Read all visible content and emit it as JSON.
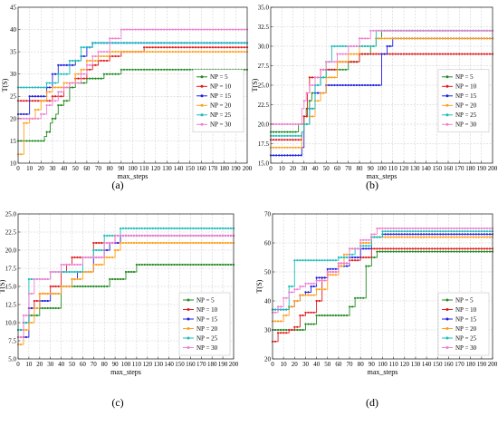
{
  "chart_data": [
    {
      "type": "line",
      "panel_label": "(a)",
      "xlabel": "max_steps",
      "ylabel": "T(S)",
      "xlim": [
        0,
        200
      ],
      "ylim": [
        10,
        45
      ],
      "xticks": [
        0,
        10,
        20,
        30,
        40,
        50,
        60,
        70,
        80,
        90,
        100,
        110,
        120,
        130,
        140,
        150,
        160,
        170,
        180,
        190,
        200
      ],
      "yticks": [
        10,
        15,
        20,
        25,
        30,
        35,
        40,
        45
      ],
      "grid": true,
      "legend_position": "right",
      "series": [
        {
          "name": "NP = 5",
          "x": [
            0,
            20,
            23,
            25,
            28,
            30,
            33,
            35,
            40,
            45,
            50,
            55,
            60,
            70,
            75,
            80,
            90,
            110,
            200
          ],
          "y": [
            15,
            15,
            16,
            17,
            19,
            20,
            21,
            23,
            24,
            27,
            28,
            28,
            29,
            29,
            30,
            30,
            31,
            31,
            31
          ]
        },
        {
          "name": "NP = 10",
          "x": [
            0,
            20,
            30,
            40,
            45,
            50,
            60,
            65,
            70,
            75,
            80,
            90,
            110,
            200
          ],
          "y": [
            24,
            24,
            25,
            27,
            28,
            29,
            31,
            32,
            33,
            33,
            34,
            35,
            36,
            36
          ]
        },
        {
          "name": "NP = 15",
          "x": [
            0,
            10,
            20,
            25,
            30,
            35,
            45,
            50,
            55,
            60,
            65,
            70,
            110,
            200
          ],
          "y": [
            21,
            25,
            25,
            27,
            30,
            32,
            32,
            33,
            34,
            36,
            37,
            37,
            37,
            37
          ]
        },
        {
          "name": "NP = 20",
          "x": [
            0,
            5,
            10,
            15,
            20,
            25,
            30,
            40,
            50,
            55,
            60,
            70,
            80,
            110,
            200
          ],
          "y": [
            12,
            19,
            20,
            22,
            24,
            26,
            27,
            28,
            30,
            31,
            33,
            34,
            35,
            35,
            35
          ]
        },
        {
          "name": "NP = 25",
          "x": [
            0,
            20,
            25,
            35,
            40,
            45,
            50,
            55,
            60,
            65,
            110,
            200
          ],
          "y": [
            27,
            27,
            28,
            30,
            30,
            33,
            33,
            36,
            36,
            37,
            37,
            37
          ]
        },
        {
          "name": "NP = 30",
          "x": [
            0,
            20,
            25,
            30,
            35,
            40,
            45,
            55,
            60,
            65,
            70,
            80,
            90,
            100,
            200
          ],
          "y": [
            20,
            21,
            23,
            24,
            26,
            27,
            28,
            30,
            32,
            34,
            35,
            38,
            40,
            40,
            40
          ]
        }
      ]
    },
    {
      "type": "line",
      "panel_label": "(b)",
      "xlabel": "max_steps",
      "ylabel": "T(S)",
      "xlim": [
        0,
        200
      ],
      "ylim": [
        15,
        35
      ],
      "xticks": [
        0,
        10,
        20,
        30,
        40,
        50,
        60,
        70,
        80,
        90,
        100,
        110,
        120,
        130,
        140,
        150,
        160,
        170,
        180,
        190,
        200
      ],
      "yticks": [
        15.0,
        17.5,
        20.0,
        22.5,
        25.0,
        27.5,
        30.0,
        32.5,
        35.0
      ],
      "grid": true,
      "legend_position": "right",
      "series": [
        {
          "name": "NP = 5",
          "x": [
            0,
            20,
            25,
            28,
            30,
            32,
            35,
            37,
            40,
            45,
            50,
            60,
            70,
            80,
            90,
            95,
            100,
            200
          ],
          "y": [
            19,
            19,
            20,
            20,
            21,
            22,
            23,
            24,
            25,
            26,
            27,
            27,
            28,
            29,
            30,
            31,
            32,
            32
          ]
        },
        {
          "name": "NP = 10",
          "x": [
            0,
            25,
            28,
            30,
            33,
            35,
            40,
            45,
            50,
            60,
            70,
            80,
            90,
            100,
            200
          ],
          "y": [
            18,
            18,
            19,
            21,
            24,
            26,
            26,
            27,
            27,
            28,
            28,
            29,
            29,
            29,
            29
          ]
        },
        {
          "name": "NP = 15",
          "x": [
            0,
            25,
            28,
            30,
            35,
            40,
            45,
            50,
            60,
            70,
            80,
            90,
            100,
            105,
            110,
            200
          ],
          "y": [
            16,
            16,
            17,
            20,
            22,
            24,
            24,
            25,
            25,
            25,
            25,
            25,
            29,
            30,
            31,
            31
          ]
        },
        {
          "name": "NP = 20",
          "x": [
            0,
            25,
            28,
            30,
            35,
            40,
            45,
            50,
            55,
            60,
            70,
            80,
            90,
            95,
            200
          ],
          "y": [
            17,
            17,
            19,
            20,
            21,
            23,
            24,
            26,
            26,
            28,
            29,
            30,
            30,
            31,
            31
          ]
        },
        {
          "name": "NP = 25",
          "x": [
            0,
            25,
            28,
            30,
            35,
            40,
            45,
            50,
            55,
            60,
            70,
            80,
            90,
            95,
            100,
            200
          ],
          "y": [
            18.5,
            18.5,
            19,
            20,
            22,
            25,
            26,
            28,
            30,
            30,
            30,
            30,
            30,
            32,
            32,
            32
          ]
        },
        {
          "name": "NP = 30",
          "x": [
            0,
            20,
            25,
            28,
            30,
            32,
            35,
            40,
            45,
            50,
            60,
            70,
            80,
            90,
            95,
            200
          ],
          "y": [
            20,
            20,
            20,
            22,
            23,
            24,
            25,
            26,
            27,
            28,
            29,
            30,
            31,
            32,
            32,
            32
          ]
        }
      ]
    },
    {
      "type": "line",
      "panel_label": "(c)",
      "xlabel": "max_steps",
      "ylabel": "T(S)",
      "xlim": [
        0,
        200
      ],
      "ylim": [
        5,
        25
      ],
      "xticks": [
        0,
        10,
        20,
        30,
        40,
        50,
        60,
        70,
        80,
        90,
        100,
        110,
        120,
        130,
        140,
        150,
        160,
        170,
        180,
        190,
        200
      ],
      "yticks": [
        5.0,
        7.5,
        10.0,
        12.5,
        15.0,
        17.5,
        20.0,
        22.5,
        25.0
      ],
      "grid": true,
      "legend_position": "lower right",
      "series": [
        {
          "name": "NP = 5",
          "x": [
            0,
            5,
            10,
            20,
            30,
            40,
            60,
            80,
            85,
            90,
            100,
            110,
            200
          ],
          "y": [
            9,
            10,
            11,
            12,
            12,
            15,
            15,
            15,
            16,
            16,
            17,
            18,
            18
          ]
        },
        {
          "name": "NP = 10",
          "x": [
            0,
            5,
            10,
            15,
            20,
            30,
            40,
            45,
            50,
            60,
            70,
            80,
            90,
            200
          ],
          "y": [
            8,
            10,
            12,
            13,
            14,
            15,
            17,
            18,
            19,
            19,
            21,
            21,
            22,
            22
          ]
        },
        {
          "name": "NP = 15",
          "x": [
            0,
            5,
            10,
            20,
            30,
            40,
            50,
            55,
            60,
            70,
            80,
            85,
            95,
            200
          ],
          "y": [
            8,
            8,
            12,
            13,
            14,
            15,
            16,
            17,
            17,
            19,
            20,
            21,
            22,
            22
          ]
        },
        {
          "name": "NP = 20",
          "x": [
            0,
            5,
            10,
            15,
            20,
            30,
            40,
            50,
            60,
            70,
            80,
            90,
            95,
            200
          ],
          "y": [
            7,
            9,
            10,
            12,
            14,
            14,
            15,
            16,
            17,
            18,
            19,
            20,
            21,
            21
          ]
        },
        {
          "name": "NP = 25",
          "x": [
            0,
            5,
            10,
            20,
            30,
            40,
            50,
            60,
            70,
            80,
            90,
            95,
            200
          ],
          "y": [
            9,
            10,
            16,
            16,
            17,
            17,
            17,
            19,
            20,
            22,
            22,
            23,
            23
          ]
        },
        {
          "name": "NP = 30",
          "x": [
            0,
            5,
            10,
            15,
            20,
            30,
            40,
            50,
            60,
            70,
            80,
            90,
            200
          ],
          "y": [
            8,
            11,
            14,
            16,
            16,
            17,
            18,
            18,
            19,
            19,
            21,
            22,
            22
          ]
        }
      ]
    },
    {
      "type": "line",
      "panel_label": "(d)",
      "xlabel": "max_steps",
      "ylabel": "T(S)",
      "xlim": [
        0,
        200
      ],
      "ylim": [
        20,
        70
      ],
      "xticks": [
        0,
        10,
        20,
        30,
        40,
        50,
        60,
        70,
        80,
        90,
        100,
        110,
        120,
        130,
        140,
        150,
        160,
        170,
        180,
        190,
        200
      ],
      "yticks": [
        20,
        30,
        40,
        50,
        60,
        70
      ],
      "grid": true,
      "legend_position": "lower right",
      "series": [
        {
          "name": "NP = 5",
          "x": [
            0,
            10,
            20,
            30,
            40,
            50,
            60,
            70,
            75,
            80,
            85,
            90,
            95,
            100,
            200
          ],
          "y": [
            30,
            30,
            30,
            32,
            35,
            35,
            35,
            38,
            41,
            41,
            52,
            55,
            57,
            57,
            57
          ]
        },
        {
          "name": "NP = 10",
          "x": [
            0,
            5,
            10,
            15,
            20,
            25,
            30,
            40,
            45,
            50,
            60,
            70,
            80,
            90,
            100,
            200
          ],
          "y": [
            26,
            29,
            29,
            30,
            31,
            35,
            36,
            40,
            48,
            50,
            53,
            54,
            55,
            58,
            58,
            58
          ]
        },
        {
          "name": "NP = 15",
          "x": [
            0,
            10,
            15,
            20,
            25,
            30,
            35,
            40,
            50,
            60,
            70,
            80,
            90,
            100,
            200
          ],
          "y": [
            37,
            37,
            38,
            40,
            42,
            43,
            45,
            48,
            51,
            52,
            55,
            58,
            62,
            63,
            63
          ]
        },
        {
          "name": "NP = 20",
          "x": [
            0,
            5,
            10,
            15,
            20,
            25,
            30,
            40,
            50,
            60,
            65,
            70,
            80,
            90,
            100,
            200
          ],
          "y": [
            33,
            33,
            35,
            38,
            40,
            42,
            42,
            44,
            49,
            52,
            56,
            58,
            60,
            62,
            62,
            62
          ]
        },
        {
          "name": "NP = 25",
          "x": [
            0,
            10,
            15,
            20,
            30,
            40,
            50,
            60,
            70,
            75,
            80,
            90,
            100,
            200
          ],
          "y": [
            37,
            37,
            45,
            54,
            54,
            54,
            54,
            55,
            56,
            58,
            59,
            62,
            64,
            64
          ]
        },
        {
          "name": "NP = 30",
          "x": [
            0,
            5,
            10,
            15,
            20,
            25,
            30,
            40,
            50,
            60,
            70,
            80,
            90,
            95,
            200
          ],
          "y": [
            36,
            38,
            41,
            43,
            44,
            45,
            46,
            47,
            50,
            53,
            58,
            61,
            63,
            65,
            65
          ]
        }
      ]
    }
  ],
  "series_colors": [
    "#228B22",
    "#E41A1C",
    "#1F1FE0",
    "#FF9F1A",
    "#17BEBB",
    "#F080D0"
  ]
}
